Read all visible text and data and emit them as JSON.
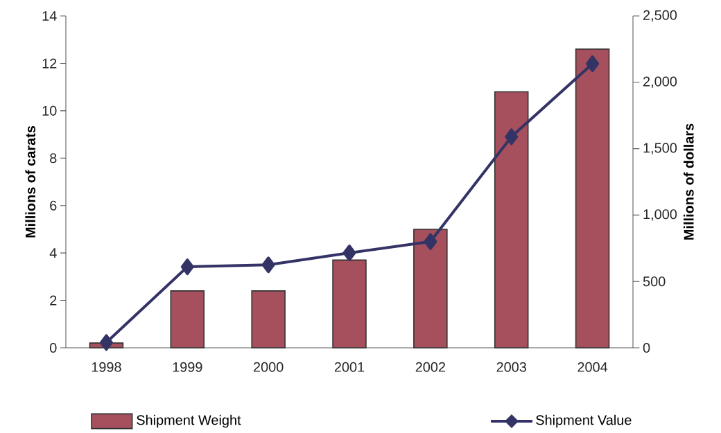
{
  "chart_data": {
    "type": "bar",
    "categories": [
      "1998",
      "1999",
      "2000",
      "2001",
      "2002",
      "2003",
      "2004"
    ],
    "series": [
      {
        "name": "Shipment Weight",
        "color": "#a5505c",
        "values": [
          0.2,
          2.4,
          2.4,
          3.7,
          5.0,
          10.8,
          12.6
        ]
      },
      {
        "name": "Shipment Value",
        "type": "line",
        "axis": "y2",
        "color": "#333366",
        "values": [
          40,
          610,
          625,
          715,
          800,
          1590,
          2140
        ]
      }
    ],
    "ylabel": "Millions of carats",
    "y2label": "Millions of dollars",
    "ylim": [
      0,
      14
    ],
    "yticks": [
      0,
      2,
      4,
      6,
      8,
      10,
      12,
      14
    ],
    "y2lim": [
      0,
      2500
    ],
    "y2ticks": [
      0,
      500,
      {
        "value": 1000,
        "label": "1,000"
      },
      {
        "value": 1500,
        "label": "1,500"
      },
      {
        "value": 2000,
        "label": "2,000"
      },
      {
        "value": 2500,
        "label": "2,500"
      }
    ],
    "marker": "diamond",
    "legend": "bottom"
  }
}
